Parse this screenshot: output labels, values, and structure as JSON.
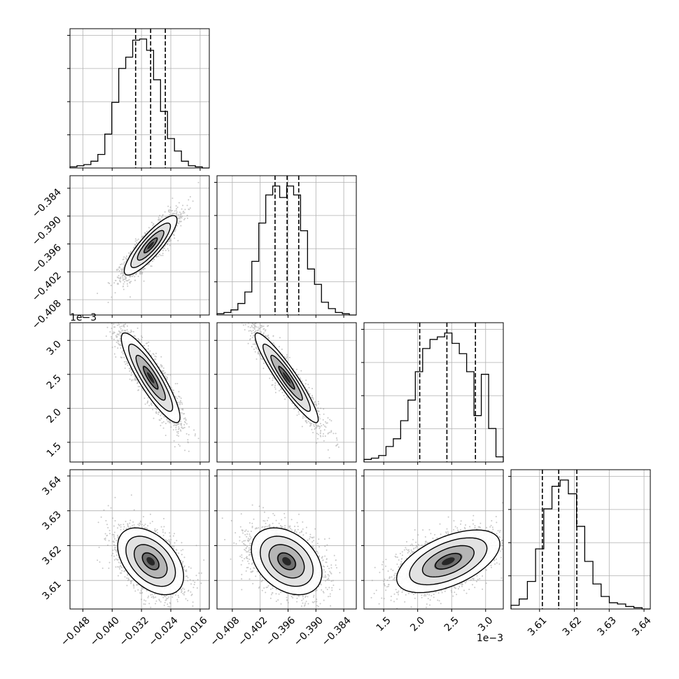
{
  "chart_data": {
    "type": "corner",
    "grid": true,
    "parameters": [
      {
        "range": [
          -0.0515,
          -0.0135
        ],
        "ticks": [
          -0.048,
          -0.04,
          -0.032,
          -0.024,
          -0.016
        ],
        "tick_labels": [
          "−0.048",
          "−0.040",
          "−0.032",
          "−0.024",
          "−0.016"
        ],
        "offset_label": "",
        "quantiles": [
          -0.0336,
          -0.0295,
          -0.0255
        ],
        "hist": [
          1,
          2,
          3,
          6,
          12,
          30,
          58,
          88,
          98,
          113,
          114,
          104,
          78,
          50,
          26,
          15,
          6,
          2,
          1,
          0
        ]
      },
      {
        "range": [
          -0.4113,
          -0.3813
        ],
        "ticks": [
          -0.408,
          -0.402,
          -0.396,
          -0.39,
          -0.384
        ],
        "tick_labels": [
          "−0.408",
          "−0.402",
          "−0.396",
          "−0.390",
          "−0.384"
        ],
        "offset_label": "",
        "quantiles": [
          -0.3988,
          -0.3962,
          -0.3937
        ],
        "hist": [
          1,
          2,
          4,
          9,
          18,
          42,
          72,
          94,
          101,
          92,
          101,
          94,
          66,
          36,
          24,
          10,
          5,
          2,
          1,
          0
        ]
      },
      {
        "range": [
          1.21,
          3.26
        ],
        "ticks": [
          1.5,
          2.0,
          2.5,
          3.0
        ],
        "tick_labels": [
          "1.5",
          "2.0",
          "2.5",
          "3.0"
        ],
        "offset_label": "1e−3",
        "quantiles": [
          2.03,
          2.43,
          2.85
        ],
        "hist": [
          2,
          3,
          5,
          12,
          18,
          32,
          48,
          70,
          88,
          95,
          97,
          100,
          92,
          84,
          70,
          36,
          68,
          26,
          4
        ]
      },
      {
        "range": [
          3.6018,
          3.6418
        ],
        "ticks": [
          3.61,
          3.62,
          3.63,
          3.64
        ],
        "tick_labels": [
          "3.61",
          "3.62",
          "3.63",
          "3.64"
        ],
        "offset_label": "",
        "quantiles": [
          3.6108,
          3.6155,
          3.6207
        ],
        "hist": [
          3,
          8,
          22,
          48,
          80,
          98,
          103,
          92,
          66,
          38,
          20,
          10,
          5,
          4,
          2,
          1,
          0
        ]
      }
    ],
    "pairs": [
      {
        "row": 1,
        "col": 0,
        "mean": [
          -0.0295,
          -0.3963
        ],
        "sd": [
          0.0036,
          0.0032
        ],
        "rho": 0.86
      },
      {
        "row": 2,
        "col": 0,
        "mean": [
          -0.0295,
          2.45
        ],
        "sd": [
          0.004,
          0.33
        ],
        "rho": -0.88
      },
      {
        "row": 2,
        "col": 1,
        "mean": [
          -0.3963,
          2.45
        ],
        "sd": [
          0.0034,
          0.33
        ],
        "rho": -0.93
      },
      {
        "row": 3,
        "col": 0,
        "mean": [
          -0.0295,
          3.6155
        ],
        "sd": [
          0.0045,
          0.0048
        ],
        "rho": -0.45
      },
      {
        "row": 3,
        "col": 1,
        "mean": [
          -0.3963,
          3.6155
        ],
        "sd": [
          0.0038,
          0.0048
        ],
        "rho": -0.35
      },
      {
        "row": 3,
        "col": 2,
        "mean": [
          2.45,
          3.6155
        ],
        "sd": [
          0.38,
          0.0045
        ],
        "rho": 0.55
      }
    ],
    "samples_per_panel": 2400
  }
}
